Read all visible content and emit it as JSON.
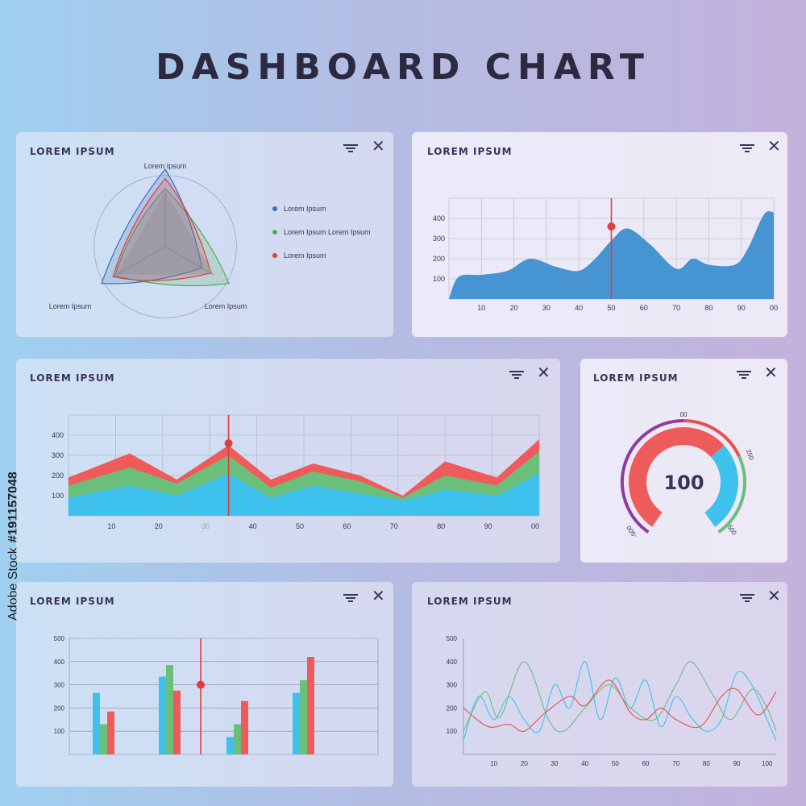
{
  "page": {
    "title": "DASHBOARD CHART",
    "watermark_brand": "Adobe Stock",
    "watermark_id": "#191157048"
  },
  "colors": {
    "blue": "#3d8fd0",
    "red": "#e8504f",
    "green": "#6ac07a",
    "cyan": "#3fc1ee",
    "purple": "#8e3d9e",
    "text": "#3a3356"
  },
  "icons": {
    "filter": "filter-icon",
    "close": "close-icon"
  },
  "cards": {
    "radar": {
      "title": "LOREM IPSUM",
      "close_glyph": "✕",
      "legend": [
        "Lorem Ipsum",
        "Lorem Ipsum Lorem Ipsum",
        "Lorem Ipsum"
      ]
    },
    "area": {
      "title": "LOREM IPSUM",
      "close_glyph": "✕"
    },
    "stacked": {
      "title": "LOREM IPSUM",
      "close_glyph": "✕"
    },
    "gauge": {
      "title": "LOREM IPSUM",
      "close_glyph": "✕",
      "value": "100"
    },
    "bars": {
      "title": "LOREM IPSUM",
      "close_glyph": "✕"
    },
    "lines": {
      "title": "LOREM IPSUM",
      "close_glyph": "✕"
    }
  },
  "chart_data": [
    {
      "id": "radar",
      "type": "radar",
      "axes": [
        "Lorem Ipsum",
        "Lorem Ipsum",
        "Lorem Ipsum"
      ],
      "series": [
        {
          "name": "Lorem Ipsum",
          "color": "#3d6fc0",
          "values": [
            1.0,
            0.95,
            0.55
          ]
        },
        {
          "name": "Lorem Ipsum Lorem Ipsum",
          "color": "#4caf50",
          "values": [
            0.75,
            0.75,
            0.95
          ]
        },
        {
          "name": "Lorem Ipsum",
          "color": "#e23c3c",
          "values": [
            0.88,
            0.78,
            0.68
          ]
        }
      ]
    },
    {
      "id": "area",
      "type": "area",
      "x_ticks": [
        "10",
        "20",
        "30",
        "40",
        "50",
        "60",
        "70",
        "80",
        "90",
        "00"
      ],
      "y_ticks": [
        100,
        200,
        300,
        400
      ],
      "xlim": [
        0,
        100
      ],
      "ylim": [
        0,
        500
      ],
      "x": [
        0,
        3,
        10,
        18,
        25,
        33,
        40,
        45,
        50,
        55,
        62,
        70,
        75,
        80,
        88,
        92,
        97,
        100
      ],
      "values": [
        0,
        110,
        120,
        140,
        200,
        160,
        140,
        200,
        290,
        350,
        270,
        150,
        200,
        170,
        170,
        250,
        420,
        430
      ],
      "marker": {
        "x": 50,
        "y": 360
      }
    },
    {
      "id": "stacked",
      "type": "area",
      "x_ticks": [
        "10",
        "20",
        "30",
        "40",
        "50",
        "60",
        "70",
        "80",
        "90",
        "00"
      ],
      "highlight_tick": "30",
      "y_ticks": [
        100,
        200,
        300,
        400
      ],
      "xlim": [
        0,
        100
      ],
      "ylim": [
        0,
        500
      ],
      "x": [
        0,
        13,
        23,
        34,
        43,
        52,
        62,
        71,
        80,
        91,
        100
      ],
      "series": [
        {
          "name": "",
          "color": "#3fc1ee",
          "values": [
            90,
            150,
            100,
            210,
            90,
            150,
            110,
            75,
            130,
            100,
            210
          ]
        },
        {
          "name": "",
          "color": "#6ac07a",
          "values": [
            150,
            240,
            160,
            300,
            140,
            220,
            170,
            90,
            200,
            150,
            320
          ]
        },
        {
          "name": "",
          "color": "#ef5b5b",
          "values": [
            190,
            310,
            180,
            350,
            180,
            260,
            200,
            100,
            270,
            190,
            380
          ]
        }
      ],
      "marker": {
        "x": 34,
        "y": 360
      }
    },
    {
      "id": "gauge",
      "type": "gauge",
      "value": 100,
      "labels": [
        "-500",
        "00",
        "250",
        "500"
      ]
    },
    {
      "id": "bars",
      "type": "bar",
      "y_ticks": [
        100,
        200,
        300,
        400,
        500
      ],
      "ylim": [
        0,
        500
      ],
      "groups": 4,
      "series": [
        {
          "name": "",
          "color": "#3fc1ee",
          "values": [
            265,
            335,
            75,
            265
          ]
        },
        {
          "name": "",
          "color": "#6ac07a",
          "values": [
            130,
            385,
            130,
            320
          ]
        },
        {
          "name": "",
          "color": "#ef5b5b",
          "values": [
            185,
            275,
            230,
            420
          ]
        }
      ],
      "marker": {
        "y": 300
      }
    },
    {
      "id": "lines",
      "type": "line",
      "x_ticks": [
        "10",
        "20",
        "30",
        "40",
        "50",
        "60",
        "70",
        "80",
        "90",
        "100"
      ],
      "y_ticks": [
        100,
        200,
        300,
        400,
        500
      ],
      "xlim": [
        0,
        103
      ],
      "ylim": [
        0,
        500
      ],
      "series": [
        {
          "name": "",
          "color": "#3fc1ee",
          "x": [
            0,
            5,
            10,
            15,
            20,
            25,
            30,
            35,
            40,
            45,
            50,
            55,
            60,
            65,
            70,
            75,
            80,
            85,
            90,
            95,
            100,
            103
          ],
          "values": [
            60,
            250,
            150,
            250,
            150,
            100,
            300,
            200,
            400,
            150,
            330,
            200,
            320,
            120,
            250,
            160,
            100,
            150,
            350,
            300,
            150,
            60
          ]
        },
        {
          "name": "",
          "color": "#6ac07a",
          "x": [
            0,
            7,
            12,
            20,
            28,
            33,
            40,
            48,
            55,
            63,
            70,
            75,
            82,
            88,
            95,
            100,
            103
          ],
          "values": [
            100,
            270,
            160,
            400,
            150,
            100,
            200,
            300,
            200,
            150,
            300,
            400,
            260,
            150,
            280,
            200,
            100
          ]
        },
        {
          "name": "",
          "color": "#e8504f",
          "x": [
            0,
            8,
            15,
            20,
            27,
            35,
            40,
            48,
            55,
            60,
            65,
            70,
            78,
            85,
            90,
            97,
            103
          ],
          "values": [
            200,
            120,
            130,
            100,
            180,
            250,
            210,
            320,
            180,
            150,
            200,
            150,
            120,
            250,
            280,
            170,
            270
          ]
        }
      ]
    }
  ]
}
